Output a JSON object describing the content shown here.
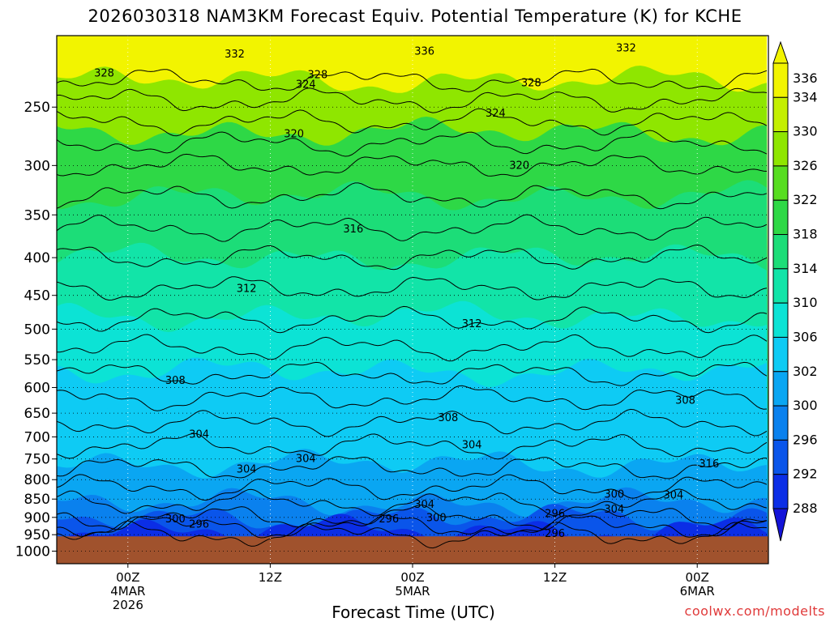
{
  "title": "2026030318 NAM3KM Forecast Equiv. Potential Temperature (K) for KCHE",
  "x_axis_title": "Forecast Time (UTC)",
  "credit": "coolwx.com/modelts",
  "chart_data": {
    "type": "heatmap",
    "title": "2026030318 NAM3KM Forecast Equiv. Potential Temperature (K) for KCHE",
    "xlabel": "Forecast Time (UTC)",
    "ylabel": "",
    "y_scale": "log-pressure, inverted",
    "y_ticks": [
      250,
      300,
      350,
      400,
      450,
      500,
      550,
      600,
      650,
      700,
      750,
      800,
      850,
      900,
      950,
      1000
    ],
    "ylim_hPa": [
      1040,
      200
    ],
    "x_ticks": [
      {
        "hour": 6,
        "lines": [
          "00Z",
          "4MAR",
          "2026"
        ]
      },
      {
        "hour": 18,
        "lines": [
          "12Z"
        ]
      },
      {
        "hour": 30,
        "lines": [
          "00Z",
          "5MAR"
        ]
      },
      {
        "hour": 42,
        "lines": [
          "12Z"
        ]
      },
      {
        "hour": 54,
        "lines": [
          "00Z",
          "6MAR"
        ]
      }
    ],
    "xlim_hours": [
      0,
      60
    ],
    "grid": true,
    "colorbar": {
      "labels": [
        336,
        334,
        330,
        326,
        322,
        318,
        314,
        310,
        306,
        302,
        300,
        296,
        292,
        288
      ],
      "colors": [
        "#f2f400",
        "#c4ef00",
        "#8fe600",
        "#57dd20",
        "#2ed846",
        "#1cdd78",
        "#12e4a8",
        "#0ce3d5",
        "#0ecbf4",
        "#0aa6f2",
        "#0a81ee",
        "#0a55ea",
        "#0b2ee6",
        "#1414d8"
      ]
    },
    "bands": [
      {
        "top_hPa": 200,
        "theta": 336
      },
      {
        "top_hPa": 230,
        "theta": 328
      },
      {
        "top_hPa": 270,
        "theta": 322
      },
      {
        "top_hPa": 330,
        "theta": 318
      },
      {
        "top_hPa": 400,
        "theta": 314
      },
      {
        "top_hPa": 480,
        "theta": 310
      },
      {
        "top_hPa": 570,
        "theta": 306
      },
      {
        "top_hPa": 650,
        "theta": 304
      },
      {
        "top_hPa": 760,
        "theta": 302
      },
      {
        "top_hPa": 860,
        "theta": 300
      },
      {
        "top_hPa": 900,
        "theta": 296
      },
      {
        "top_hPa": 935,
        "theta": 292
      }
    ],
    "surface": {
      "pressure_hPa": 955,
      "color": "#a0522d"
    },
    "contour_labels": [
      {
        "text": "336",
        "hour": 31,
        "p": 210
      },
      {
        "text": "332",
        "hour": 15,
        "p": 212
      },
      {
        "text": "332",
        "hour": 48,
        "p": 208
      },
      {
        "text": "328",
        "hour": 4,
        "p": 225
      },
      {
        "text": "328",
        "hour": 22,
        "p": 226
      },
      {
        "text": "328",
        "hour": 40,
        "p": 232
      },
      {
        "text": "324",
        "hour": 21,
        "p": 233
      },
      {
        "text": "324",
        "hour": 37,
        "p": 255
      },
      {
        "text": "320",
        "hour": 20,
        "p": 272
      },
      {
        "text": "320",
        "hour": 39,
        "p": 300
      },
      {
        "text": "316",
        "hour": 25,
        "p": 366
      },
      {
        "text": "312",
        "hour": 16,
        "p": 441
      },
      {
        "text": "312",
        "hour": 35,
        "p": 492
      },
      {
        "text": "308",
        "hour": 10,
        "p": 587
      },
      {
        "text": "308",
        "hour": 33,
        "p": 660
      },
      {
        "text": "308",
        "hour": 53,
        "p": 625
      },
      {
        "text": "304",
        "hour": 12,
        "p": 695
      },
      {
        "text": "304",
        "hour": 21,
        "p": 750
      },
      {
        "text": "304",
        "hour": 16,
        "p": 775
      },
      {
        "text": "304",
        "hour": 35,
        "p": 718
      },
      {
        "text": "304",
        "hour": 31,
        "p": 865
      },
      {
        "text": "304",
        "hour": 47,
        "p": 878
      },
      {
        "text": "304",
        "hour": 52,
        "p": 840
      },
      {
        "text": "300",
        "hour": 10,
        "p": 905
      },
      {
        "text": "300",
        "hour": 32,
        "p": 902
      },
      {
        "text": "300",
        "hour": 47,
        "p": 838
      },
      {
        "text": "296",
        "hour": 12,
        "p": 920
      },
      {
        "text": "296",
        "hour": 28,
        "p": 905
      },
      {
        "text": "296",
        "hour": 42,
        "p": 890
      },
      {
        "text": "296",
        "hour": 42,
        "p": 947
      },
      {
        "text": "316",
        "hour": 55,
        "p": 762
      }
    ]
  }
}
